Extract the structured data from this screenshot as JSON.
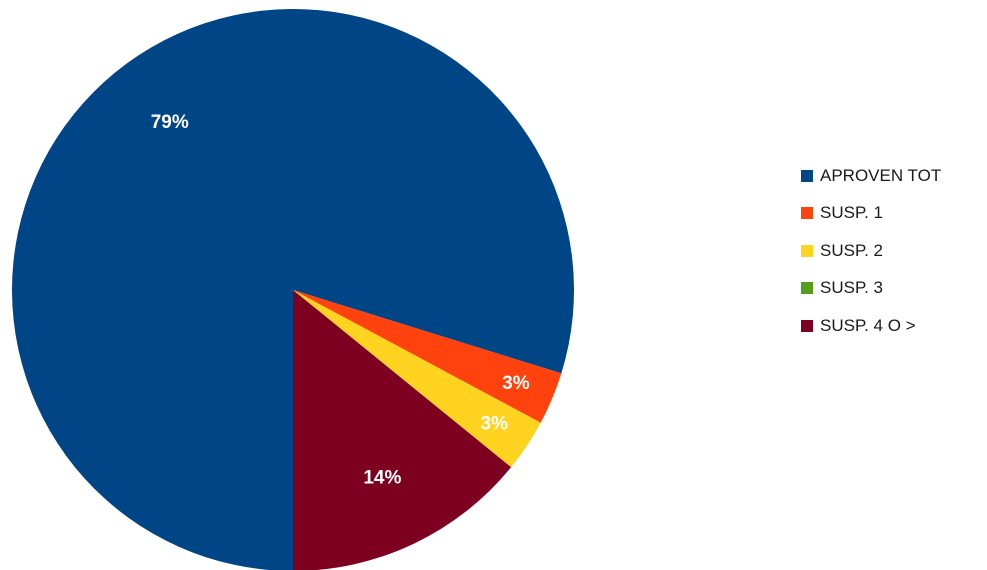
{
  "chart_data": {
    "type": "pie",
    "title": "",
    "start_angle_deg": 180,
    "direction": "clockwise",
    "legend_position": "right",
    "categories": [
      "APROVEN TOT",
      "SUSP. 1",
      "SUSP. 2",
      "SUSP. 3",
      "SUSP. 4 O >"
    ],
    "values": [
      79,
      3,
      3,
      0,
      14
    ],
    "data_labels": [
      "79%",
      "3%",
      "3%",
      "",
      "14%"
    ],
    "colors": [
      "#004586",
      "#ff420e",
      "#ffd320",
      "#579d1c",
      "#7e0021"
    ]
  }
}
